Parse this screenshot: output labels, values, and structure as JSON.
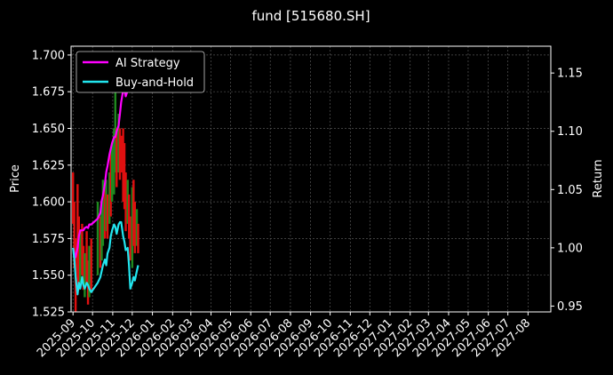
{
  "chart_data": {
    "type": "line",
    "title": "fund [515680.SH]",
    "ylabel_left": "Price",
    "ylabel_right": "Return",
    "background": "#000000",
    "grid": true,
    "legend_position": "upper-left",
    "x_dates": [
      "2025-09-01",
      "2025-10-01",
      "2025-11-01",
      "2025-12-01",
      "2026-01-01",
      "2026-02-01",
      "2026-03-01",
      "2026-04-01",
      "2026-05-01",
      "2026-06-01",
      "2026-07-01",
      "2026-08-01",
      "2026-09-01",
      "2026-10-01",
      "2026-11-01",
      "2026-12-01",
      "2027-01-01",
      "2027-02-01",
      "2027-03-01",
      "2027-04-01",
      "2027-05-01",
      "2027-06-01",
      "2027-07-01",
      "2027-08-01"
    ],
    "x_tick_labels": [
      "2025-09",
      "2025-10",
      "2025-11",
      "2025-12",
      "2026-01",
      "2026-02",
      "2026-03",
      "2026-04",
      "2026-05",
      "2026-06",
      "2026-07",
      "2026-08",
      "2026-09",
      "2026-10",
      "2026-11",
      "2026-12",
      "2027-01",
      "2027-02",
      "2027-03",
      "2027-04",
      "2027-05",
      "2027-06",
      "2027-07",
      "2027-08"
    ],
    "x_range": [
      "2025-08-29",
      "2027-09-05"
    ],
    "y_left": {
      "range": [
        1.525,
        1.706
      ],
      "ticks": [
        1.525,
        1.55,
        1.575,
        1.6,
        1.625,
        1.65,
        1.675,
        1.7
      ],
      "tick_labels": [
        "1.525",
        "1.550",
        "1.575",
        "1.600",
        "1.625",
        "1.650",
        "1.675",
        "1.700"
      ]
    },
    "y_right": {
      "range": [
        0.945,
        1.173
      ],
      "ticks": [
        0.95,
        1.0,
        1.05,
        1.1,
        1.15
      ],
      "tick_labels": [
        "0.95",
        "1.00",
        "1.05",
        "1.10",
        "1.15"
      ]
    },
    "series": [
      {
        "name": "AI Strategy",
        "axis": "right",
        "color": "#ff00ff",
        "dates": [
          "2025-09-01",
          "2025-09-03",
          "2025-09-05",
          "2025-09-08",
          "2025-09-10",
          "2025-09-12",
          "2025-09-15",
          "2025-09-17",
          "2025-09-19",
          "2025-09-22",
          "2025-09-24",
          "2025-09-26",
          "2025-09-29",
          "2025-10-09",
          "2025-10-13",
          "2025-10-15",
          "2025-10-17",
          "2025-10-20",
          "2025-10-22",
          "2025-10-24",
          "2025-10-27",
          "2025-10-29",
          "2025-10-31",
          "2025-11-03",
          "2025-11-05",
          "2025-11-07",
          "2025-11-10",
          "2025-11-12",
          "2025-11-14",
          "2025-11-17",
          "2025-11-19",
          "2025-11-21",
          "2025-11-24",
          "2025-11-26",
          "2025-11-28",
          "2025-12-01",
          "2025-12-03",
          "2025-12-05",
          "2025-12-08",
          "2025-12-10"
        ],
        "values": [
          1.0,
          0.995,
          0.992,
          1.0,
          1.01,
          1.015,
          1.015,
          1.015,
          1.017,
          1.018,
          1.017,
          1.02,
          1.02,
          1.025,
          1.03,
          1.04,
          1.045,
          1.055,
          1.065,
          1.07,
          1.08,
          1.085,
          1.09,
          1.095,
          1.095,
          1.1,
          1.105,
          1.115,
          1.125,
          1.135,
          1.135,
          1.13,
          1.135,
          1.14,
          1.145,
          1.15,
          1.15,
          1.155,
          1.165,
          1.168
        ]
      },
      {
        "name": "Buy-and-Hold",
        "axis": "right",
        "color": "#22e5ee",
        "dates": [
          "2025-09-01",
          "2025-09-03",
          "2025-09-05",
          "2025-09-08",
          "2025-09-10",
          "2025-09-12",
          "2025-09-15",
          "2025-09-17",
          "2025-09-19",
          "2025-09-22",
          "2025-09-24",
          "2025-09-26",
          "2025-09-29",
          "2025-10-09",
          "2025-10-13",
          "2025-10-15",
          "2025-10-17",
          "2025-10-20",
          "2025-10-22",
          "2025-10-24",
          "2025-10-27",
          "2025-10-29",
          "2025-10-31",
          "2025-11-03",
          "2025-11-05",
          "2025-11-07",
          "2025-11-10",
          "2025-11-12",
          "2025-11-14",
          "2025-11-17",
          "2025-11-19",
          "2025-11-21",
          "2025-11-24",
          "2025-11-26",
          "2025-11-28",
          "2025-12-01",
          "2025-12-03",
          "2025-12-05",
          "2025-12-08",
          "2025-12-10"
        ],
        "values": [
          1.0,
          0.99,
          0.975,
          0.96,
          0.97,
          0.965,
          0.975,
          0.968,
          0.965,
          0.97,
          0.968,
          0.965,
          0.962,
          0.97,
          0.975,
          0.98,
          0.985,
          0.99,
          0.985,
          0.995,
          1.0,
          1.01,
          1.015,
          1.02,
          1.018,
          1.012,
          1.02,
          1.022,
          1.022,
          1.01,
          1.005,
          0.998,
          1.0,
          0.985,
          0.965,
          0.97,
          0.975,
          0.972,
          0.98,
          0.985
        ]
      }
    ],
    "price_bars": {
      "axis": "left",
      "up_color": "#1f8a1f",
      "down_color": "#e01010",
      "bars": [
        {
          "date": "2025-09-01",
          "low": 1.585,
          "high": 1.62,
          "dir": "down"
        },
        {
          "date": "2025-09-03",
          "low": 1.555,
          "high": 1.6,
          "dir": "down"
        },
        {
          "date": "2025-09-05",
          "low": 1.525,
          "high": 1.575,
          "dir": "down"
        },
        {
          "date": "2025-09-08",
          "low": 1.54,
          "high": 1.612,
          "dir": "down"
        },
        {
          "date": "2025-09-10",
          "low": 1.54,
          "high": 1.59,
          "dir": "down"
        },
        {
          "date": "2025-09-12",
          "low": 1.545,
          "high": 1.58,
          "dir": "up"
        },
        {
          "date": "2025-09-15",
          "low": 1.55,
          "high": 1.585,
          "dir": "down"
        },
        {
          "date": "2025-09-17",
          "low": 1.54,
          "high": 1.57,
          "dir": "down"
        },
        {
          "date": "2025-09-19",
          "low": 1.535,
          "high": 1.565,
          "dir": "up"
        },
        {
          "date": "2025-09-22",
          "low": 1.545,
          "high": 1.58,
          "dir": "down"
        },
        {
          "date": "2025-09-24",
          "low": 1.53,
          "high": 1.56,
          "dir": "down"
        },
        {
          "date": "2025-09-26",
          "low": 1.535,
          "high": 1.57,
          "dir": "up"
        },
        {
          "date": "2025-09-29",
          "low": 1.54,
          "high": 1.575,
          "dir": "down"
        },
        {
          "date": "2025-10-09",
          "low": 1.55,
          "high": 1.6,
          "dir": "up"
        },
        {
          "date": "2025-10-13",
          "low": 1.555,
          "high": 1.59,
          "dir": "down"
        },
        {
          "date": "2025-10-15",
          "low": 1.56,
          "high": 1.6,
          "dir": "up"
        },
        {
          "date": "2025-10-17",
          "low": 1.57,
          "high": 1.615,
          "dir": "up"
        },
        {
          "date": "2025-10-20",
          "low": 1.575,
          "high": 1.61,
          "dir": "down"
        },
        {
          "date": "2025-10-22",
          "low": 1.58,
          "high": 1.615,
          "dir": "up"
        },
        {
          "date": "2025-10-24",
          "low": 1.575,
          "high": 1.605,
          "dir": "down"
        },
        {
          "date": "2025-10-27",
          "low": 1.585,
          "high": 1.62,
          "dir": "up"
        },
        {
          "date": "2025-10-29",
          "low": 1.59,
          "high": 1.635,
          "dir": "down"
        },
        {
          "date": "2025-10-31",
          "low": 1.6,
          "high": 1.64,
          "dir": "up"
        },
        {
          "date": "2025-11-03",
          "low": 1.605,
          "high": 1.65,
          "dir": "up"
        },
        {
          "date": "2025-11-05",
          "low": 1.62,
          "high": 1.68,
          "dir": "up"
        },
        {
          "date": "2025-11-07",
          "low": 1.61,
          "high": 1.65,
          "dir": "down"
        },
        {
          "date": "2025-11-10",
          "low": 1.62,
          "high": 1.66,
          "dir": "up"
        },
        {
          "date": "2025-11-12",
          "low": 1.615,
          "high": 1.65,
          "dir": "down"
        },
        {
          "date": "2025-11-14",
          "low": 1.62,
          "high": 1.645,
          "dir": "down"
        },
        {
          "date": "2025-11-17",
          "low": 1.6,
          "high": 1.65,
          "dir": "down"
        },
        {
          "date": "2025-11-19",
          "low": 1.595,
          "high": 1.64,
          "dir": "down"
        },
        {
          "date": "2025-11-21",
          "low": 1.58,
          "high": 1.62,
          "dir": "down"
        },
        {
          "date": "2025-11-24",
          "low": 1.585,
          "high": 1.615,
          "dir": "up"
        },
        {
          "date": "2025-11-26",
          "low": 1.575,
          "high": 1.605,
          "dir": "down"
        },
        {
          "date": "2025-11-28",
          "low": 1.56,
          "high": 1.59,
          "dir": "down"
        },
        {
          "date": "2025-12-01",
          "low": 1.555,
          "high": 1.61,
          "dir": "up"
        },
        {
          "date": "2025-12-03",
          "low": 1.57,
          "high": 1.615,
          "dir": "down"
        },
        {
          "date": "2025-12-05",
          "low": 1.565,
          "high": 1.6,
          "dir": "down"
        },
        {
          "date": "2025-12-08",
          "low": 1.57,
          "high": 1.595,
          "dir": "up"
        },
        {
          "date": "2025-12-10",
          "low": 1.565,
          "high": 1.585,
          "dir": "down"
        }
      ]
    }
  }
}
